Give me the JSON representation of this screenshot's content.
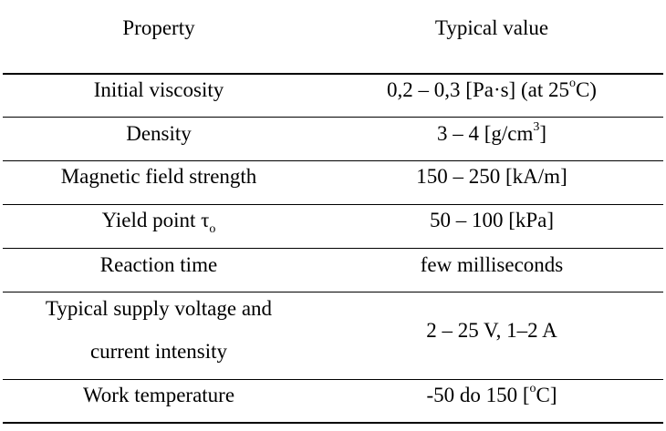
{
  "table": {
    "headers": {
      "property": "Property",
      "value": "Typical value"
    },
    "rows": [
      {
        "property": "Initial viscosity",
        "value_pre": "0,2 – 0,3 [Pa·s] (at 25",
        "value_sup": "o",
        "value_post": "C)"
      },
      {
        "property": "Density",
        "value_pre": "3 – 4 [g/cm",
        "value_sup": "3",
        "value_post": "]"
      },
      {
        "property": "Magnetic field strength",
        "value": "150 – 250 [kA/m]"
      },
      {
        "property_pre": "Yield point τ",
        "property_sub": "o",
        "value": "50 – 100 [kPa]"
      },
      {
        "property": "Reaction time",
        "value": "few milliseconds"
      },
      {
        "property_line1": "Typical supply voltage and",
        "property_line2": "current intensity",
        "value": "2 – 25 V, 1–2 A"
      },
      {
        "property": "Work temperature",
        "value_pre": "-50 do 150 [",
        "value_sup": "o",
        "value_post": "C]"
      }
    ]
  }
}
